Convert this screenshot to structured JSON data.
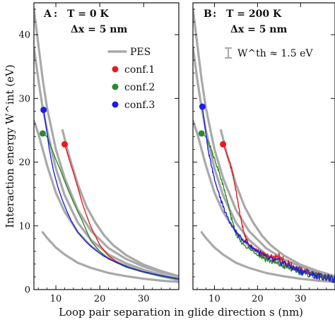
{
  "axes": {
    "xlabel": "Loop pair separation in glide direction s (nm)",
    "ylabel": "Interaction energy W^int (eV)"
  },
  "colors": {
    "pes": "#a9a9a9",
    "conf1": "#e8191b",
    "conf2": "#2a8a2a",
    "conf3": "#1d1de8",
    "axis": "#111111"
  },
  "chart_data": [
    {
      "type": "line",
      "panel_label": "A",
      "title_line1": "T = 0 K",
      "title_line2": "Δx = 5 nm",
      "xlim": [
        5,
        38
      ],
      "ylim": [
        0,
        45
      ],
      "xticks": [
        10,
        20,
        30
      ],
      "yticks": [
        0,
        10,
        20,
        30,
        40
      ],
      "grid": false,
      "legend": {
        "placement": "upper-center",
        "entries": [
          "PES",
          "conf.1",
          "conf.2",
          "conf.3"
        ]
      },
      "series": [
        {
          "name": "PES",
          "key": "pes",
          "style": "thick",
          "branches": [
            {
              "x": [
                5,
                6,
                7,
                8,
                10,
                12,
                15,
                18,
                22,
                26,
                30,
                34,
                38
              ],
              "y": [
                44,
                38.5,
                33,
                28.5,
                22,
                17.5,
                12.5,
                9.2,
                6.5,
                4.8,
                3.6,
                2.7,
                2.0
              ]
            },
            {
              "x": [
                5,
                6,
                7,
                8,
                10,
                12,
                15,
                18,
                22,
                26,
                30,
                34,
                38
              ],
              "y": [
                38,
                33,
                28.5,
                25,
                19,
                14.8,
                10.5,
                7.8,
                5.5,
                4.1,
                3.1,
                2.3,
                1.6
              ]
            },
            {
              "x": [
                5,
                6,
                7,
                8,
                10,
                12,
                15,
                18,
                22,
                26,
                30,
                34,
                38
              ],
              "y": [
                26.5,
                24.5,
                22,
                19.5,
                15.2,
                12.2,
                9.0,
                6.8,
                4.9,
                3.7,
                2.8,
                2.1,
                1.5
              ]
            },
            {
              "x": [
                7,
                8,
                10,
                12,
                15,
                18,
                22,
                26,
                30,
                34,
                38
              ],
              "y": [
                9.0,
                8.1,
                6.6,
                5.5,
                4.2,
                3.4,
                2.6,
                2.1,
                1.7,
                1.4,
                1.2
              ]
            },
            {
              "x": [
                11.5,
                13,
                15,
                17,
                19,
                21,
                23,
                26,
                30,
                34,
                38
              ],
              "y": [
                25,
                21,
                16.5,
                13,
                10.5,
                8.5,
                7.0,
                5.4,
                3.9,
                2.9,
                2.1
              ]
            }
          ]
        },
        {
          "name": "conf.1",
          "key": "conf1",
          "start": [
            12,
            22.8
          ],
          "x": [
            12,
            13,
            14,
            15,
            16,
            17,
            18,
            19,
            20,
            22,
            24,
            26,
            28,
            30,
            34,
            38
          ],
          "y": [
            22.8,
            20.5,
            18.3,
            16.0,
            13.6,
            11.6,
            9.8,
            8.4,
            7.0,
            5.3,
            4.3,
            3.6,
            3.1,
            2.7,
            2.1,
            1.6
          ]
        },
        {
          "name": "conf.2",
          "key": "conf2",
          "start": [
            7,
            24.5
          ],
          "x": [
            7,
            8,
            9,
            10,
            11,
            12,
            13,
            14,
            15,
            16,
            17,
            18,
            20,
            22,
            26,
            30,
            34,
            38
          ],
          "y": [
            24.5,
            24.0,
            22.2,
            20.4,
            18.8,
            17.0,
            15.3,
            13.7,
            12.2,
            10.8,
            9.2,
            7.6,
            6.0,
            4.8,
            3.5,
            2.7,
            2.1,
            1.6
          ]
        },
        {
          "name": "conf.3",
          "key": "conf3",
          "start": [
            7.2,
            28.2
          ],
          "x": [
            7.2,
            7.8,
            8.5,
            9.5,
            10.5,
            11.5,
            12.5,
            13.5,
            15,
            17,
            19,
            21,
            24,
            27,
            30,
            34,
            38
          ],
          "y": [
            28.2,
            25.5,
            22.0,
            18.5,
            16.0,
            14.0,
            12.3,
            10.8,
            9.0,
            7.4,
            6.2,
            5.2,
            4.2,
            3.4,
            2.8,
            2.2,
            1.7
          ]
        }
      ]
    },
    {
      "type": "line",
      "panel_label": "B",
      "title_line1": "T = 200 K",
      "title_line2": "Δx = 5 nm",
      "threshold_label": "W^th ≈ 1.5 eV",
      "threshold_value": 1.5,
      "xlim": [
        5,
        38
      ],
      "ylim": [
        0,
        45
      ],
      "xticks": [
        10,
        20,
        30
      ],
      "yticks": [
        0,
        10,
        20,
        30,
        40
      ],
      "grid": false,
      "series": [
        {
          "name": "PES",
          "key": "pes",
          "style": "thick",
          "branches": [
            {
              "x": [
                5,
                6,
                7,
                8,
                10,
                12,
                15,
                18,
                22,
                26,
                30,
                34,
                38
              ],
              "y": [
                44,
                38.5,
                33,
                28.5,
                22,
                17.5,
                12.5,
                9.2,
                6.5,
                4.8,
                3.6,
                2.7,
                2.0
              ]
            },
            {
              "x": [
                5,
                6,
                7,
                8,
                10,
                12,
                15,
                18,
                22,
                26,
                30,
                34,
                38
              ],
              "y": [
                38,
                33,
                28.5,
                25,
                19,
                14.8,
                10.5,
                7.8,
                5.5,
                4.1,
                3.1,
                2.3,
                1.6
              ]
            },
            {
              "x": [
                5,
                6,
                7,
                8,
                10,
                12,
                15,
                18,
                22,
                26,
                30,
                34,
                38
              ],
              "y": [
                26.5,
                24.5,
                22,
                19.5,
                15.2,
                12.2,
                9.0,
                6.8,
                4.9,
                3.7,
                2.8,
                2.1,
                1.5
              ]
            },
            {
              "x": [
                7,
                8,
                10,
                12,
                15,
                18,
                22,
                26,
                30,
                34,
                38
              ],
              "y": [
                9.0,
                8.1,
                6.6,
                5.5,
                4.2,
                3.4,
                2.6,
                2.1,
                1.7,
                1.4,
                1.2
              ]
            },
            {
              "x": [
                11.5,
                13,
                15,
                17,
                19,
                21,
                23,
                26,
                30,
                34,
                38
              ],
              "y": [
                25,
                21,
                16.5,
                13,
                10.5,
                8.5,
                7.0,
                5.4,
                3.9,
                2.9,
                2.1
              ]
            }
          ]
        },
        {
          "name": "conf.1",
          "key": "conf1",
          "start": [
            12,
            22.8
          ],
          "x": [
            12,
            13,
            14,
            15,
            16,
            17,
            18,
            19,
            20,
            22,
            24,
            25,
            26,
            28,
            30,
            32,
            34,
            36,
            38
          ],
          "y": [
            22.8,
            21.0,
            19.0,
            15.5,
            11.5,
            8.5,
            7.0,
            6.5,
            6.0,
            5.2,
            4.8,
            5.3,
            4.6,
            3.7,
            3.0,
            2.7,
            2.2,
            1.9,
            1.6
          ]
        },
        {
          "name": "conf.2",
          "key": "conf2",
          "start": [
            7,
            24.5
          ],
          "x": [
            7,
            8,
            9,
            10,
            11,
            12,
            13,
            14,
            15,
            16,
            18,
            20,
            22,
            24,
            26,
            28,
            30,
            32,
            34,
            36,
            38
          ],
          "y": [
            24.5,
            24.0,
            22.5,
            20.5,
            18.5,
            16.3,
            13.8,
            11.0,
            8.8,
            7.6,
            6.4,
            5.6,
            4.8,
            4.2,
            3.7,
            3.2,
            2.8,
            2.4,
            2.1,
            1.8,
            1.5
          ]
        },
        {
          "name": "conf.3",
          "key": "conf3",
          "start": [
            7.2,
            28.7
          ],
          "x": [
            7.2,
            7.8,
            8.5,
            9.5,
            10.5,
            11.5,
            12.5,
            14,
            16,
            18,
            20,
            22,
            24,
            26,
            28,
            30,
            32,
            34,
            36,
            38
          ],
          "y": [
            28.7,
            25.5,
            22.0,
            18.8,
            16.2,
            14.0,
            12.1,
            10.0,
            8.2,
            7.0,
            6.0,
            5.0,
            4.5,
            4.2,
            3.5,
            2.9,
            2.6,
            2.1,
            1.9,
            1.5
          ]
        }
      ]
    }
  ]
}
